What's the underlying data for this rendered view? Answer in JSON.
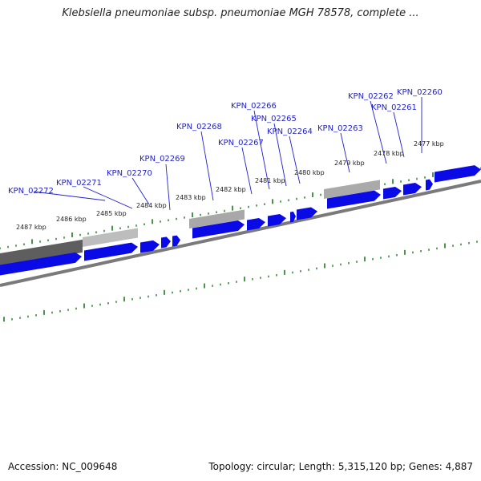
{
  "title": "Klebsiella pneumoniae subsp. pneumoniae MGH 78578, complete ...",
  "footer": {
    "accession": "Accession: NC_009648",
    "summary": "Topology: circular; Length: 5,315,120 bp; Genes: 4,887"
  },
  "colors": {
    "gene_arrow": "#0a0ae6",
    "gene_label": "#1f1fc8",
    "backbone": "#7a7a7a",
    "ticks": "#1e7a1e",
    "leader_line": "#2020d0"
  },
  "scale_labels": [
    "2487 kbp",
    "2486 kbp",
    "2485 kbp",
    "2484 kbp",
    "2483 kbp",
    "2482 kbp",
    "2481 kbp",
    "2480 kbp",
    "2479 kbp",
    "2478 kbp",
    "2477 kbp"
  ],
  "genes": [
    {
      "label": "KPN_02272",
      "strand": "forward"
    },
    {
      "label": "KPN_02271",
      "strand": "forward"
    },
    {
      "label": "KPN_02270",
      "strand": "forward"
    },
    {
      "label": "KPN_02269",
      "strand": "forward"
    },
    {
      "label": "KPN_02268",
      "strand": "forward"
    },
    {
      "label": "KPN_02267",
      "strand": "forward"
    },
    {
      "label": "KPN_02266",
      "strand": "forward"
    },
    {
      "label": "KPN_02265",
      "strand": "forward"
    },
    {
      "label": "KPN_02264",
      "strand": "forward"
    },
    {
      "label": "KPN_02263",
      "strand": "forward"
    },
    {
      "label": "KPN_02262",
      "strand": "forward"
    },
    {
      "label": "KPN_02261",
      "strand": "forward"
    },
    {
      "label": "KPN_02260",
      "strand": "forward"
    }
  ]
}
